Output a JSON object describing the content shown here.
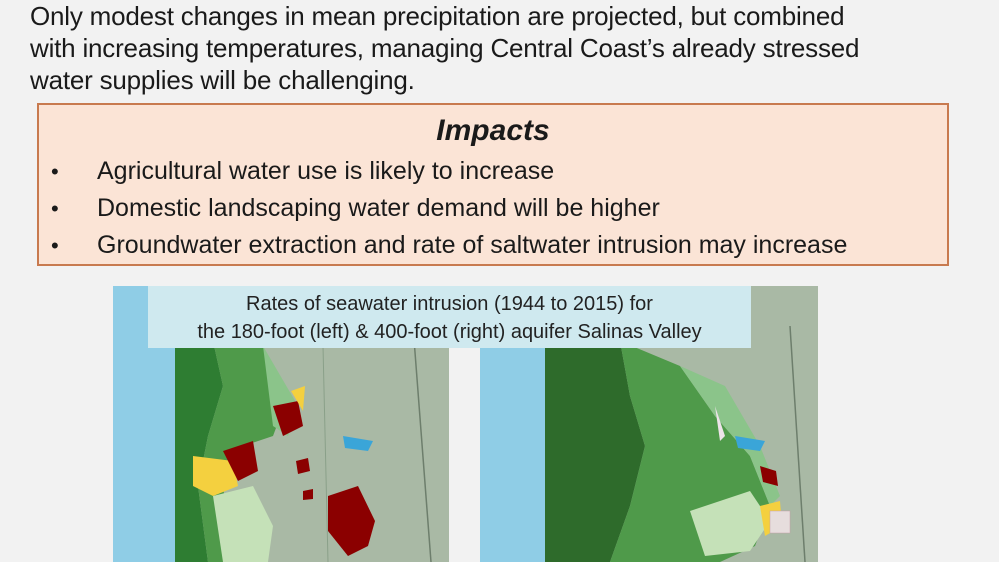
{
  "intro": {
    "lines": [
      "Only modest changes in mean precipitation are projected, but combined",
      "with increasing temperatures, managing Central Coast’s already stressed",
      "water supplies will be challenging."
    ]
  },
  "impacts": {
    "title": "Impacts",
    "bullet": "•",
    "items": [
      "Agricultural water use is likely to increase",
      "Domestic landscaping water demand will be higher",
      "Groundwater extraction and rate of saltwater intrusion may increase"
    ]
  },
  "maps": {
    "caption_lines": [
      "Rates of seawater intrusion (1944 to 2015) for",
      "the 180-foot (left) & 400-foot (right) aquifer Salinas Valley"
    ],
    "colors": {
      "ocean": "#8fcde6",
      "land": "#a8b8a4",
      "dark_green": "#2e7d32",
      "mid_green": "#4caf50",
      "light_green": "#a5d6a7",
      "dark_red": "#8b0000",
      "yellow": "#f4d03f"
    }
  }
}
